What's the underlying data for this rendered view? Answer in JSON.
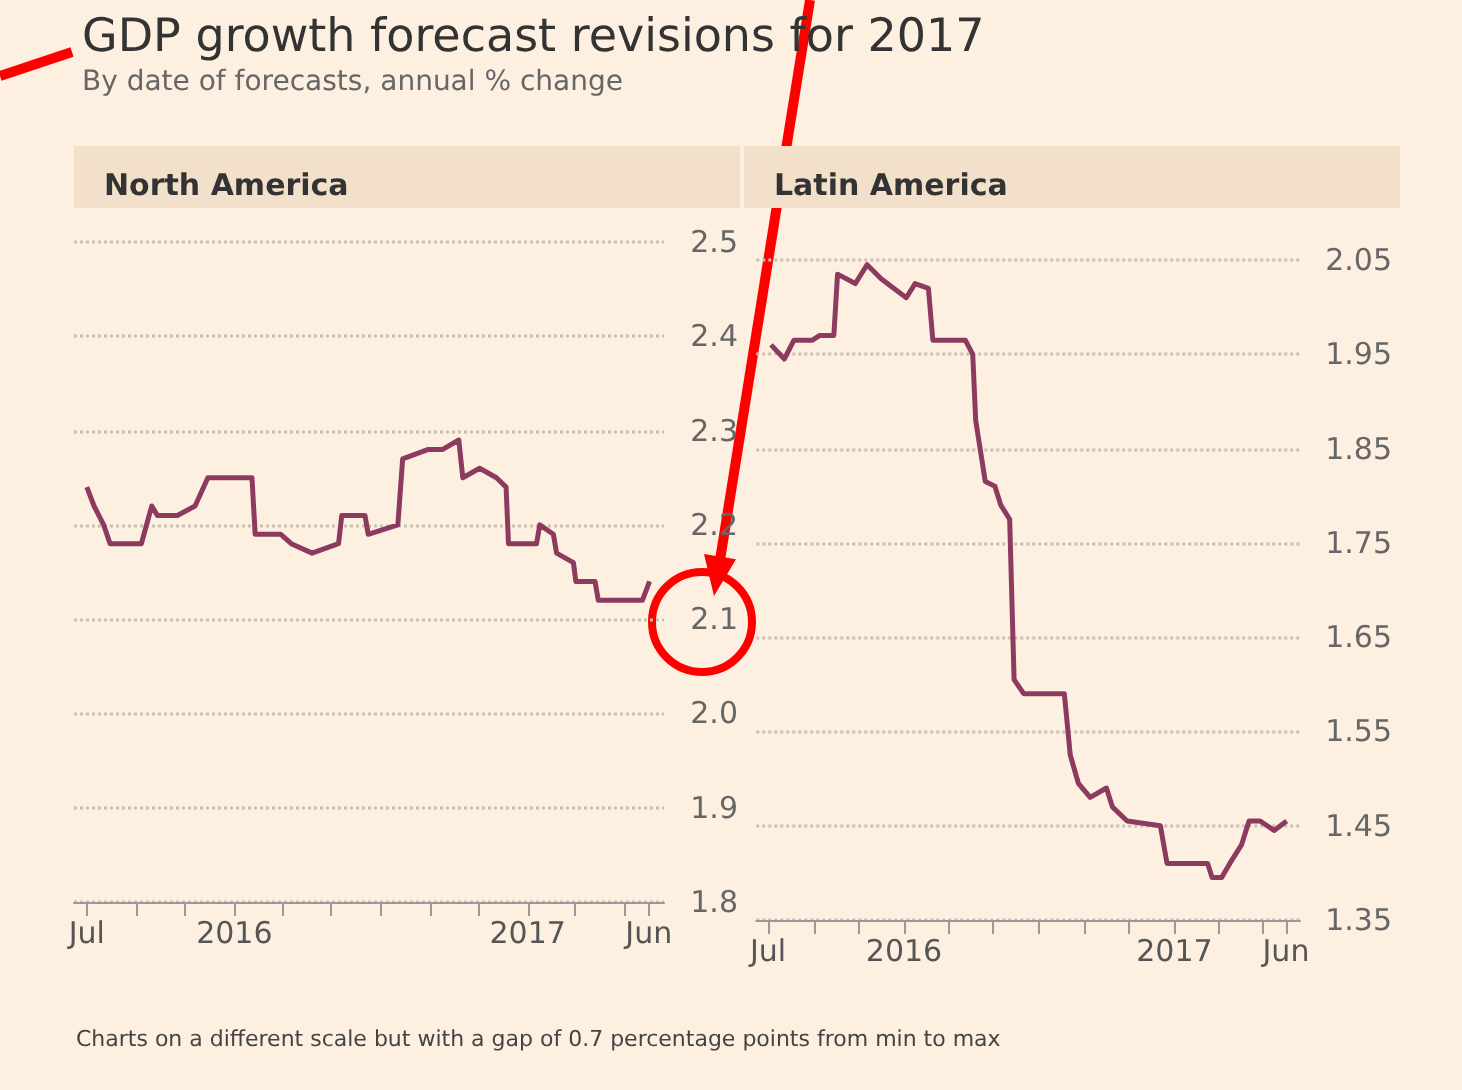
{
  "chart_data": [
    {
      "type": "other",
      "title": "GDP growth forecast revisions for 2017",
      "subtitle": "By date of forecasts, annual % change",
      "annotations": [
        "Charts on a different scale but with a gap of 0.7 percentage points from min to max"
      ]
    },
    {
      "type": "line",
      "title": "North America",
      "marker": "none",
      "grid": "y",
      "tick_labels": "xy",
      "xlim": [
        "2015-06-15",
        "2017-06-20"
      ],
      "xticks": [
        {
          "value": "2015-07",
          "label": "Jul"
        },
        {
          "value": "2015-09",
          "label": null
        },
        {
          "value": "2015-11",
          "label": null
        },
        {
          "value": "2016-01",
          "label": "2016"
        },
        {
          "value": "2016-03",
          "label": null
        },
        {
          "value": "2016-05",
          "label": null
        },
        {
          "value": "2016-07",
          "label": null
        },
        {
          "value": "2016-09",
          "label": null
        },
        {
          "value": "2016-11",
          "label": null
        },
        {
          "value": "2017-01",
          "label": "2017"
        },
        {
          "value": "2017-03",
          "label": null
        },
        {
          "value": "2017-05",
          "label": null
        },
        {
          "value": "2017-06",
          "label": "Jun"
        }
      ],
      "ylim": [
        1.8,
        2.5
      ],
      "yticks": [
        1.8,
        1.9,
        {
          "value": 2,
          "label": "2.0"
        },
        2.1,
        2.2,
        2.3,
        2.4,
        2.5
      ],
      "series": [
        {
          "color": "#8c3b5e",
          "x": [
            "2015-07-01",
            "2015-07-10",
            "2015-07-22",
            "2015-07-30",
            "2015-09-07",
            "2015-09-20",
            "2015-09-27",
            "2015-10-19",
            "2015-10-22",
            "2015-11-13",
            "2015-11-29",
            "2016-01-23",
            "2016-01-27",
            "2016-02-28",
            "2016-03-12",
            "2016-04-07",
            "2016-05-10",
            "2016-05-14",
            "2016-06-12",
            "2016-06-16",
            "2016-07-23",
            "2016-07-29",
            "2016-08-30",
            "2016-09-17",
            "2016-10-07",
            "2016-10-12",
            "2016-11-02",
            "2016-11-23",
            "2016-12-05",
            "2016-12-08",
            "2017-01-12",
            "2017-01-16",
            "2017-02-02",
            "2017-02-06",
            "2017-02-27",
            "2017-03-02",
            "2017-03-26",
            "2017-03-30",
            "2017-05-24",
            "2017-06-02"
          ],
          "values": [
            2.24,
            2.22,
            2.2,
            2.18,
            2.18,
            2.22,
            2.21,
            2.21,
            2.21,
            2.22,
            2.25,
            2.25,
            2.19,
            2.19,
            2.18,
            2.17,
            2.18,
            2.21,
            2.21,
            2.19,
            2.2,
            2.27,
            2.28,
            2.28,
            2.29,
            2.25,
            2.26,
            2.25,
            2.24,
            2.18,
            2.18,
            2.2,
            2.19,
            2.17,
            2.16,
            2.14,
            2.14,
            2.12,
            2.12,
            2.14
          ]
        }
      ]
    },
    {
      "type": "line",
      "title": "Latin America",
      "marker": "none",
      "grid": "y",
      "tick_labels": "xy",
      "xlim": [
        "2015-06-15",
        "2017-06-20"
      ],
      "xticks": [
        {
          "value": "2015-07",
          "label": "Jul"
        },
        {
          "value": "2015-09",
          "label": null
        },
        {
          "value": "2015-11",
          "label": null
        },
        {
          "value": "2016-01",
          "label": "2016"
        },
        {
          "value": "2016-03",
          "label": null
        },
        {
          "value": "2016-05",
          "label": null
        },
        {
          "value": "2016-07",
          "label": null
        },
        {
          "value": "2016-09",
          "label": null
        },
        {
          "value": "2016-11",
          "label": null
        },
        {
          "value": "2017-01",
          "label": "2017"
        },
        {
          "value": "2017-03",
          "label": null
        },
        {
          "value": "2017-05",
          "label": null
        },
        {
          "value": "2017-06",
          "label": "Jun"
        }
      ],
      "ylim": [
        1.35,
        2.05
      ],
      "yticks": [
        1.35,
        1.45,
        1.55,
        1.65,
        1.75,
        1.85,
        1.95,
        2.05
      ],
      "series": [
        {
          "color": "#8c3b5e",
          "x": [
            "2015-07-05",
            "2015-07-23",
            "2015-08-05",
            "2015-08-30",
            "2015-09-09",
            "2015-09-28",
            "2015-10-03",
            "2015-10-27",
            "2015-11-12",
            "2015-12-01",
            "2016-01-04",
            "2016-01-16",
            "2016-02-03",
            "2016-02-09",
            "2016-03-24",
            "2016-04-03",
            "2016-04-07",
            "2016-04-20",
            "2016-05-03",
            "2016-05-11",
            "2016-05-23",
            "2016-05-29",
            "2016-06-11",
            "2016-08-05",
            "2016-08-13",
            "2016-08-24",
            "2016-09-09",
            "2016-10-01",
            "2016-10-09",
            "2016-10-29",
            "2016-12-13",
            "2016-12-22",
            "2017-02-15",
            "2017-02-21",
            "2017-03-06",
            "2017-03-17",
            "2017-04-02",
            "2017-04-12",
            "2017-04-27",
            "2017-05-16",
            "2017-06-02"
          ],
          "values": [
            1.96,
            1.945,
            1.965,
            1.965,
            1.97,
            1.97,
            2.035,
            2.025,
            2.045,
            2.03,
            2.01,
            2.025,
            2.02,
            1.965,
            1.965,
            1.95,
            1.88,
            1.815,
            1.81,
            1.79,
            1.775,
            1.605,
            1.59,
            1.59,
            1.525,
            1.495,
            1.48,
            1.49,
            1.47,
            1.455,
            1.45,
            1.41,
            1.41,
            1.395,
            1.395,
            1.41,
            1.43,
            1.455,
            1.455,
            1.445,
            1.455
          ]
        }
      ]
    }
  ]
}
